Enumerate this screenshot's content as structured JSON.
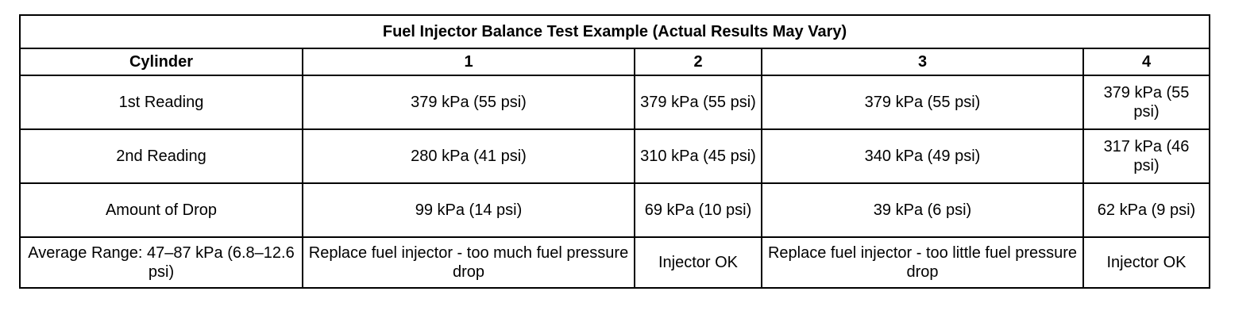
{
  "table": {
    "title": "Fuel Injector Balance Test Example (Actual Results May Vary)",
    "header": {
      "label": "Cylinder",
      "cylinders": [
        "1",
        "2",
        "3",
        "4"
      ]
    },
    "rows": [
      {
        "label": "1st Reading",
        "cells": [
          "379 kPa (55 psi)",
          "379 kPa (55 psi)",
          "379 kPa (55 psi)",
          "379 kPa (55 psi)"
        ]
      },
      {
        "label": "2nd Reading",
        "cells": [
          "280 kPa (41 psi)",
          "310 kPa (45 psi)",
          "340 kPa (49 psi)",
          "317 kPa (46 psi)"
        ]
      },
      {
        "label": "Amount of Drop",
        "cells": [
          "99 kPa (14 psi)",
          "69 kPa (10 psi)",
          "39 kPa (6 psi)",
          "62 kPa (9 psi)"
        ]
      },
      {
        "label": "Average Range: 47–87 kPa (6.8–12.6 psi)",
        "cells": [
          "Replace fuel injector - too much fuel pressure drop",
          "Injector OK",
          "Replace fuel injector - too little fuel pressure drop",
          "Injector OK"
        ]
      }
    ]
  }
}
